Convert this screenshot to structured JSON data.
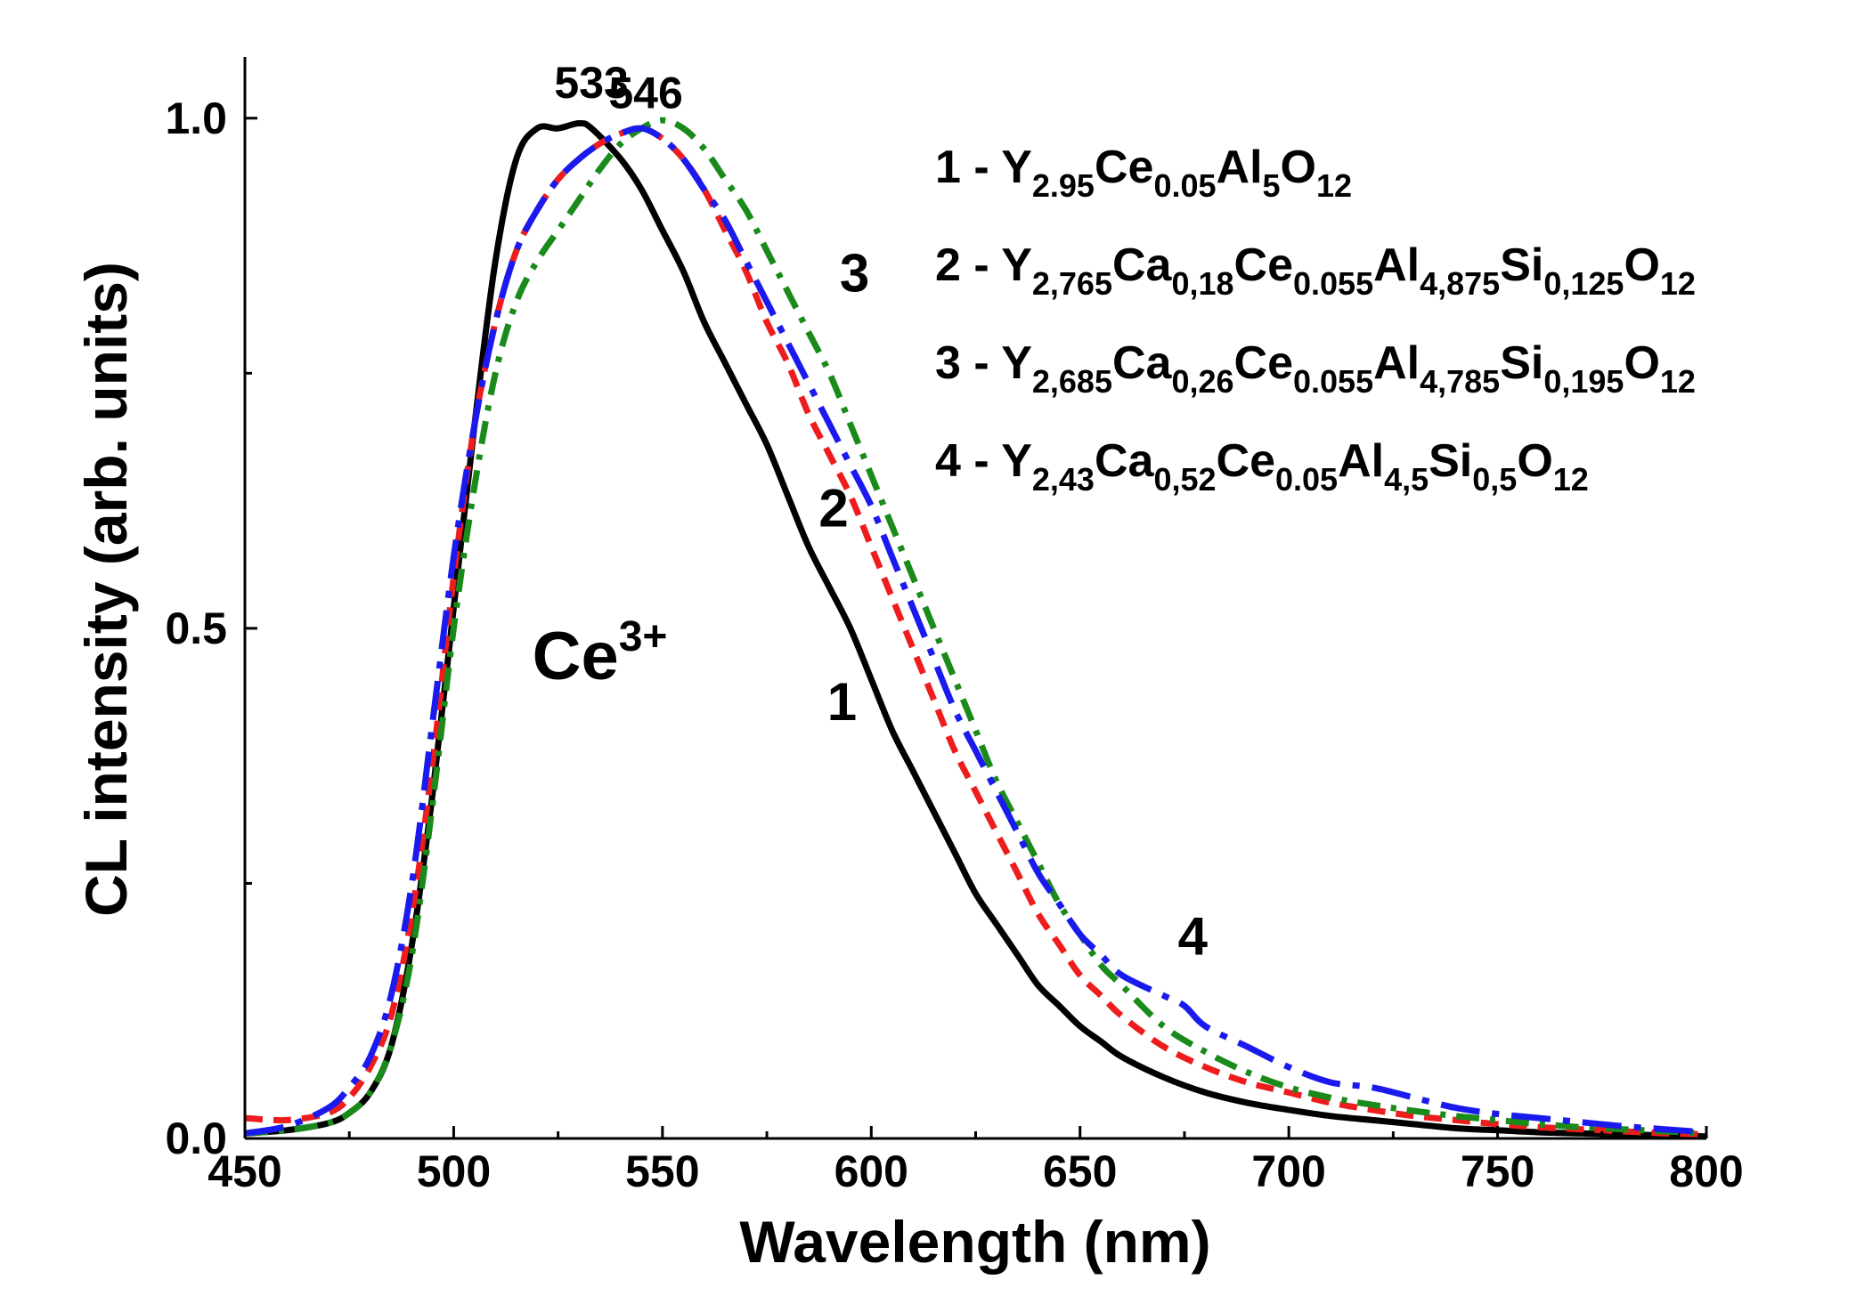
{
  "chart_data": {
    "type": "line",
    "xlabel": "Wavelength (nm)",
    "ylabel": "CL intensity (arb. units)",
    "xlim": [
      450,
      800
    ],
    "ylim": [
      0,
      1.06
    ],
    "x_ticks": [
      450,
      500,
      550,
      600,
      650,
      700,
      750,
      800
    ],
    "x_tick_labels": [
      "450",
      "500",
      "550",
      "600",
      "650",
      "700",
      "750",
      "800"
    ],
    "y_ticks": [
      0.0,
      0.5,
      1.0
    ],
    "y_tick_labels": [
      "0.0",
      "0.5",
      "1.0"
    ],
    "grid": false,
    "legend_position": "top-right",
    "legend": [
      {
        "id": "1",
        "parts": [
          [
            "1 - Y",
            ""
          ],
          [
            "2.95",
            "sub"
          ],
          [
            "Ce",
            ""
          ],
          [
            "0.05",
            "sub"
          ],
          [
            "Al",
            ""
          ],
          [
            "5",
            "sub"
          ],
          [
            "O",
            ""
          ],
          [
            "12",
            "sub"
          ]
        ]
      },
      {
        "id": "2",
        "parts": [
          [
            "2 - Y",
            ""
          ],
          [
            "2,765",
            "sub"
          ],
          [
            "Ca",
            ""
          ],
          [
            "0,18",
            "sub"
          ],
          [
            "Ce",
            ""
          ],
          [
            "0.055",
            "sub"
          ],
          [
            "Al",
            ""
          ],
          [
            "4,875",
            "sub"
          ],
          [
            "Si",
            ""
          ],
          [
            "0,125",
            "sub"
          ],
          [
            "O",
            ""
          ],
          [
            "12",
            "sub"
          ]
        ]
      },
      {
        "id": "3",
        "parts": [
          [
            "3 - Y",
            ""
          ],
          [
            "2,685",
            "sub"
          ],
          [
            "Ca",
            ""
          ],
          [
            "0,26",
            "sub"
          ],
          [
            "Ce",
            ""
          ],
          [
            "0.055",
            "sub"
          ],
          [
            "Al",
            ""
          ],
          [
            "4,785",
            "sub"
          ],
          [
            "Si",
            ""
          ],
          [
            "0,195",
            "sub"
          ],
          [
            "O",
            ""
          ],
          [
            "12",
            "sub"
          ]
        ]
      },
      {
        "id": "4",
        "parts": [
          [
            "4 - Y",
            ""
          ],
          [
            "2,43",
            "sub"
          ],
          [
            "Ca",
            ""
          ],
          [
            "0,52",
            "sub"
          ],
          [
            "Ce",
            ""
          ],
          [
            "0.05",
            "sub"
          ],
          [
            "Al",
            ""
          ],
          [
            "4,5",
            "sub"
          ],
          [
            "Si",
            ""
          ],
          [
            "0,5",
            "sub"
          ],
          [
            "O",
            ""
          ],
          [
            "12",
            "sub"
          ]
        ]
      }
    ],
    "annotations": {
      "peak1": {
        "text": "533",
        "x": 533,
        "y": 1.02
      },
      "peak2": {
        "text": "546",
        "x": 546,
        "y": 1.01
      },
      "ion": {
        "text": "Ce",
        "sup": "3+",
        "x": 535,
        "y": 0.45
      },
      "label1": {
        "text": "1",
        "x": 593,
        "y": 0.41
      },
      "label2": {
        "text": "2",
        "x": 591,
        "y": 0.6
      },
      "label3": {
        "text": "3",
        "x": 596,
        "y": 0.83
      },
      "label4": {
        "text": "4",
        "x": 677,
        "y": 0.18
      }
    },
    "series": [
      {
        "id": "1",
        "color": "#000000",
        "dash": "solid",
        "x": [
          450,
          460,
          470,
          475,
          480,
          485,
          490,
          495,
          500,
          505,
          510,
          515,
          520,
          525,
          530,
          533,
          540,
          545,
          550,
          555,
          560,
          565,
          570,
          575,
          580,
          585,
          590,
          595,
          600,
          605,
          610,
          615,
          620,
          625,
          630,
          635,
          640,
          645,
          650,
          655,
          660,
          670,
          680,
          690,
          700,
          710,
          720,
          730,
          740,
          750,
          760,
          770,
          780,
          790,
          800
        ],
        "y": [
          0.005,
          0.008,
          0.015,
          0.025,
          0.045,
          0.09,
          0.19,
          0.34,
          0.52,
          0.7,
          0.86,
          0.96,
          0.99,
          0.99,
          0.995,
          0.99,
          0.96,
          0.93,
          0.89,
          0.85,
          0.8,
          0.76,
          0.72,
          0.68,
          0.63,
          0.58,
          0.54,
          0.5,
          0.45,
          0.4,
          0.36,
          0.32,
          0.28,
          0.24,
          0.21,
          0.18,
          0.15,
          0.13,
          0.11,
          0.095,
          0.08,
          0.06,
          0.045,
          0.035,
          0.028,
          0.022,
          0.018,
          0.014,
          0.01,
          0.008,
          0.006,
          0.005,
          0.004,
          0.003,
          0.002
        ]
      },
      {
        "id": "2",
        "color": "#ee1c1c",
        "dash": "short-dash",
        "x": [
          450,
          460,
          470,
          475,
          480,
          485,
          490,
          495,
          500,
          505,
          510,
          515,
          520,
          525,
          530,
          535,
          540,
          545,
          550,
          555,
          560,
          565,
          570,
          575,
          580,
          585,
          590,
          595,
          600,
          605,
          610,
          615,
          620,
          625,
          630,
          635,
          640,
          645,
          650,
          655,
          660,
          670,
          680,
          690,
          700,
          710,
          720,
          730,
          740,
          750,
          760,
          770,
          780,
          790,
          800
        ],
        "y": [
          0.02,
          0.018,
          0.025,
          0.04,
          0.07,
          0.12,
          0.22,
          0.37,
          0.55,
          0.7,
          0.8,
          0.87,
          0.91,
          0.94,
          0.96,
          0.975,
          0.985,
          0.99,
          0.98,
          0.96,
          0.93,
          0.89,
          0.85,
          0.8,
          0.76,
          0.71,
          0.67,
          0.63,
          0.58,
          0.53,
          0.48,
          0.43,
          0.38,
          0.34,
          0.3,
          0.26,
          0.22,
          0.19,
          0.16,
          0.14,
          0.12,
          0.09,
          0.07,
          0.055,
          0.045,
          0.035,
          0.028,
          0.022,
          0.018,
          0.014,
          0.011,
          0.009,
          0.007,
          0.005,
          0.004
        ]
      },
      {
        "id": "3",
        "color": "#1a8a1a",
        "dash": "dash-dot",
        "x": [
          450,
          460,
          470,
          475,
          480,
          485,
          490,
          495,
          500,
          505,
          510,
          515,
          520,
          525,
          530,
          535,
          540,
          545,
          550,
          555,
          560,
          565,
          570,
          575,
          580,
          585,
          590,
          595,
          600,
          605,
          610,
          615,
          620,
          625,
          630,
          635,
          640,
          645,
          650,
          655,
          660,
          670,
          680,
          690,
          700,
          710,
          720,
          730,
          740,
          750,
          760,
          770,
          780,
          790,
          800
        ],
        "y": [
          0.005,
          0.008,
          0.015,
          0.025,
          0.045,
          0.09,
          0.18,
          0.33,
          0.5,
          0.64,
          0.75,
          0.82,
          0.86,
          0.89,
          0.92,
          0.95,
          0.975,
          0.99,
          0.998,
          0.99,
          0.97,
          0.94,
          0.91,
          0.87,
          0.83,
          0.79,
          0.75,
          0.7,
          0.65,
          0.6,
          0.55,
          0.5,
          0.45,
          0.4,
          0.35,
          0.31,
          0.27,
          0.23,
          0.2,
          0.17,
          0.15,
          0.11,
          0.085,
          0.065,
          0.05,
          0.04,
          0.033,
          0.027,
          0.022,
          0.018,
          0.014,
          0.011,
          0.009,
          0.007,
          0.005
        ]
      },
      {
        "id": "4",
        "color": "#1a1aee",
        "dash": "long-dash-dot",
        "x": [
          450,
          460,
          470,
          475,
          480,
          485,
          490,
          495,
          500,
          505,
          510,
          515,
          520,
          525,
          530,
          535,
          540,
          545,
          550,
          555,
          560,
          565,
          570,
          575,
          580,
          585,
          590,
          595,
          600,
          605,
          610,
          615,
          620,
          625,
          630,
          635,
          640,
          645,
          650,
          655,
          660,
          670,
          675,
          680,
          690,
          700,
          710,
          720,
          730,
          740,
          750,
          760,
          770,
          780,
          790,
          800
        ],
        "y": [
          0.005,
          0.012,
          0.03,
          0.05,
          0.08,
          0.14,
          0.25,
          0.41,
          0.57,
          0.7,
          0.8,
          0.87,
          0.91,
          0.94,
          0.96,
          0.975,
          0.985,
          0.99,
          0.98,
          0.96,
          0.93,
          0.9,
          0.86,
          0.82,
          0.78,
          0.74,
          0.7,
          0.66,
          0.62,
          0.57,
          0.52,
          0.47,
          0.42,
          0.38,
          0.34,
          0.3,
          0.26,
          0.23,
          0.2,
          0.18,
          0.16,
          0.14,
          0.13,
          0.11,
          0.09,
          0.07,
          0.055,
          0.05,
          0.04,
          0.03,
          0.024,
          0.02,
          0.016,
          0.012,
          0.009,
          0.006
        ]
      }
    ]
  }
}
